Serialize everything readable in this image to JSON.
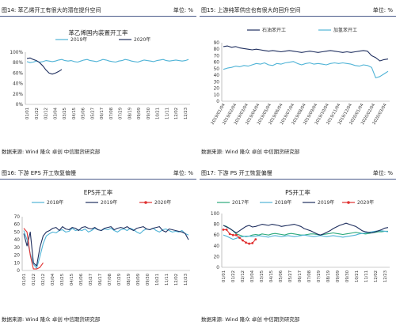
{
  "charts": [
    {
      "header": "图14: 苯乙烯开工有很大的潜在提升空间",
      "unit": "单位: %",
      "source": "数据来源: Wind 隆众 卓创 中信期货研究部",
      "chart_data": {
        "type": "line",
        "title": "苯乙烯国内装置开工率",
        "yticks": [
          "100%",
          "80%",
          "60%",
          "40%",
          "20%",
          "0%"
        ],
        "ylim": [
          0,
          100
        ],
        "xticks": [
          "01/01",
          "01/22",
          "02/12",
          "03/04",
          "03/25",
          "04/15",
          "05/06",
          "05/27",
          "06/17",
          "07/08",
          "07/29",
          "08/19",
          "09/09",
          "09/30",
          "10/21",
          "11/11",
          "12/02",
          "12/23"
        ],
        "series": [
          {
            "name": "2019年",
            "color": "#4fb3d6",
            "values": [
              82,
              80,
              81,
              83,
              81,
              82,
              84,
              83,
              82,
              83,
              85,
              86,
              84,
              83,
              84,
              82,
              81,
              83,
              85,
              86,
              84,
              83,
              82,
              84,
              86,
              85,
              83,
              82,
              81,
              83,
              84,
              86,
              85,
              83,
              82,
              81,
              83,
              85,
              84,
              83,
              82,
              84,
              85,
              86,
              84,
              83,
              84,
              85,
              84,
              83,
              84,
              86
            ]
          },
          {
            "name": "2020年",
            "color": "#1f2f5f",
            "values": [
              88,
              89,
              86,
              84,
              80,
              74,
              66,
              60,
              58,
              60,
              63,
              67
            ]
          }
        ]
      }
    },
    {
      "header": "图15: 上游纯苯供应也有很大的回升空间",
      "unit": "单位: %",
      "source": "数据来源: Wind 隆众 卓创 中信期货研究部",
      "chart_data": {
        "type": "line",
        "title": "",
        "yticks": [
          "90",
          "80",
          "70",
          "60",
          "50",
          "40",
          "30",
          "20",
          "10",
          "0"
        ],
        "ylim": [
          0,
          90
        ],
        "xticks": [
          "2019/01/04",
          "2019/02/04",
          "2019/03/04",
          "2019/04/04",
          "2019/05/04",
          "2019/06/04",
          "2019/07/04",
          "2019/08/04",
          "2019/09/04",
          "2019/10/04",
          "2019/11/04",
          "2019/12/04",
          "2020/01/04",
          "2020/02/04",
          "2020/03/04"
        ],
        "series": [
          {
            "name": "石油苯开工",
            "color": "#1f2f5f",
            "values": [
              84,
              85,
              83,
              84,
              82,
              81,
              80,
              79,
              80,
              79,
              78,
              77,
              78,
              77,
              76,
              77,
              78,
              77,
              76,
              75,
              76,
              77,
              76,
              75,
              76,
              77,
              78,
              77,
              76,
              75,
              76,
              75,
              76,
              77,
              78,
              77,
              70,
              67,
              62,
              64,
              65
            ]
          },
          {
            "name": "加氢苯开工",
            "color": "#4fb3d6",
            "values": [
              49,
              51,
              52,
              54,
              53,
              55,
              54,
              56,
              58,
              57,
              59,
              56,
              55,
              58,
              57,
              59,
              60,
              61,
              58,
              56,
              58,
              59,
              57,
              58,
              57,
              56,
              58,
              59,
              58,
              59,
              58,
              57,
              55,
              54,
              56,
              55,
              52,
              36,
              38,
              42,
              46
            ]
          }
        ]
      }
    },
    {
      "header": "图16: 下游 EPS 开工恢复偏慢",
      "unit": "单位: %",
      "source": "数据来源: Wind 隆众 卓创 中信期货研究部",
      "chart_data": {
        "type": "line",
        "title": "EPS开工率",
        "yticks": [
          "70",
          "60",
          "50",
          "40",
          "30",
          "20",
          "10",
          "0"
        ],
        "ylim": [
          0,
          70
        ],
        "xticks": [
          "01/01",
          "01/22",
          "02/12",
          "03/04",
          "03/25",
          "04/15",
          "05/06",
          "05/27",
          "06/17",
          "07/08",
          "07/29",
          "08/19",
          "09/09",
          "09/30",
          "10/21",
          "11/11",
          "12/02",
          "12/23"
        ],
        "series": [
          {
            "name": "2018年",
            "color": "#4fb3d6",
            "values": [
              52,
              40,
              22,
              8,
              3,
              18,
              35,
              45,
              48,
              50,
              49,
              52,
              53,
              50,
              51,
              55,
              52,
              53,
              52,
              54,
              50,
              52,
              55,
              53,
              52,
              54,
              53,
              55,
              52,
              50,
              53,
              54,
              52,
              55,
              53,
              50,
              48,
              52,
              54,
              53,
              55,
              52,
              50,
              53,
              54,
              52,
              50,
              51,
              50,
              52,
              48,
              46
            ]
          },
          {
            "name": "2019年",
            "color": "#1f2f5f",
            "values": [
              48,
              32,
              50,
              10,
              6,
              30,
              45,
              50,
              52,
              55,
              56,
              52,
              57,
              54,
              53,
              56,
              55,
              52,
              56,
              57,
              55,
              54,
              56,
              53,
              52,
              55,
              56,
              57,
              53,
              55,
              56,
              55,
              57,
              54,
              52,
              55,
              56,
              57,
              54,
              53,
              55,
              56,
              57,
              52,
              50,
              54,
              53,
              52,
              51,
              50,
              48,
              40
            ]
          },
          {
            "name": "2020年",
            "color": "#e03030",
            "values": [
              55,
              50,
              20,
              2,
              2,
              4,
              10
            ]
          }
        ]
      }
    },
    {
      "header": "图17: 下游 PS 开工恢复偏慢",
      "unit": "单位: %",
      "source": "数据来源: Wind 隆众 卓创 中信期货研究部",
      "chart_data": {
        "type": "line",
        "title": "PS开工率",
        "yticks": [
          "100",
          "80",
          "60",
          "40",
          "20",
          "0"
        ],
        "ylim": [
          0,
          100
        ],
        "xticks": [
          "01/01",
          "01/22",
          "02/12",
          "03/04",
          "03/25",
          "04/15",
          "05/06",
          "05/27",
          "06/17",
          "07/08",
          "07/29",
          "08/19",
          "09/09",
          "09/30",
          "10/21",
          "11/11",
          "12/02",
          "12/23"
        ],
        "series": [
          {
            "name": "2017年",
            "color": "#2aa87a",
            "values": [
              78,
              76,
              72,
              68,
              62,
              60,
              58,
              57,
              58,
              60,
              61,
              60,
              62,
              61,
              60,
              62,
              63,
              62,
              61,
              60,
              62,
              63,
              62,
              61,
              60,
              60,
              61,
              62,
              62,
              61,
              60,
              61,
              62,
              63,
              64,
              63,
              62,
              61,
              62,
              63,
              64,
              65,
              64,
              63,
              62,
              63,
              64,
              65,
              66,
              66,
              67,
              67
            ]
          },
          {
            "name": "2018年",
            "color": "#4fb3d6",
            "values": [
              60,
              58,
              55,
              52,
              54,
              56,
              57,
              58,
              58,
              57,
              58,
              59,
              58,
              57,
              56,
              58,
              59,
              58,
              57,
              58,
              59,
              58,
              57,
              58,
              59,
              60,
              59,
              58,
              57,
              58,
              59,
              58,
              57,
              58,
              59,
              58,
              57,
              56,
              57,
              58,
              59,
              60,
              62,
              63,
              64,
              65,
              66,
              67,
              68,
              68,
              67,
              66
            ]
          },
          {
            "name": "2019年",
            "color": "#1f2f5f",
            "values": [
              78,
              75,
              72,
              68,
              64,
              68,
              72,
              76,
              78,
              75,
              76,
              78,
              80,
              79,
              78,
              80,
              79,
              78,
              76,
              77,
              78,
              79,
              80,
              78,
              76,
              72,
              70,
              68,
              65,
              62,
              60,
              62,
              65,
              68,
              72,
              75,
              78,
              80,
              82,
              80,
              78,
              76,
              72,
              68,
              66,
              65,
              64,
              66,
              68,
              70,
              73,
              74
            ]
          },
          {
            "name": "2020年",
            "color": "#e03030",
            "values": [
              70,
              70,
              62,
              60,
              60,
              55,
              50,
              46,
              44,
              45,
              52
            ]
          }
        ]
      }
    }
  ]
}
